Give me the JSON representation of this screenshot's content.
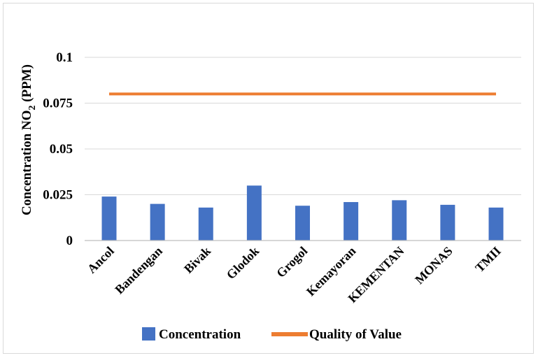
{
  "chart_data": {
    "type": "bar",
    "categories": [
      "Ancol",
      "Bandengan",
      "Bivak",
      "Glodok",
      "Grogol",
      "Kemayoran",
      "KEMENTAN",
      "MONAS",
      "TMII"
    ],
    "series": [
      {
        "name": "Concentration",
        "type": "bar",
        "color": "#4472C4",
        "values": [
          0.024,
          0.02,
          0.018,
          0.03,
          0.019,
          0.021,
          0.022,
          0.0195,
          0.018
        ]
      },
      {
        "name": "Quality of Value",
        "type": "line",
        "color": "#ED7D31",
        "values": [
          0.08,
          0.08,
          0.08,
          0.08,
          0.08,
          0.08,
          0.08,
          0.08,
          0.08
        ]
      }
    ],
    "ylabel": {
      "main": "Concentration  NO",
      "sub": "2",
      "unit": "  (PPM)"
    },
    "xlabel": "",
    "ylim": [
      0,
      0.1
    ],
    "yticks": [
      "0",
      "0.025",
      "0.05",
      "0.075",
      "0.1"
    ],
    "grid": true,
    "legend": "bottom"
  }
}
